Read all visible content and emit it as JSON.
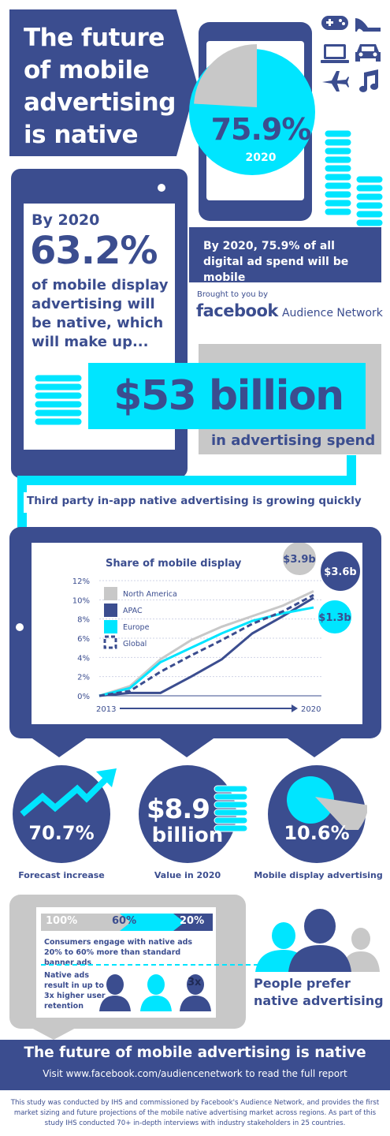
{
  "colors": {
    "navy": "#3b4d8f",
    "cyan": "#00e5ff",
    "grey": "#c8c8c8",
    "dark": "#1f2a55"
  },
  "hero": {
    "title": [
      "The future",
      "of mobile",
      "advertising",
      "is native"
    ],
    "percent": "75.9%",
    "percent_year": "2020",
    "caption": "By 2020, 75.9% of all digital ad spend will be mobile",
    "mobile_share": 75.9
  },
  "brand": {
    "brought": "Brought to you by",
    "logo": "facebook",
    "product": "Audience Network"
  },
  "native": {
    "by": "By 2020",
    "pct": "63.2%",
    "lines": [
      "of mobile display",
      "advertising will",
      "be native, which",
      "will make up..."
    ],
    "amount": "$53 billion",
    "amount_sub": "in advertising spend"
  },
  "growth_headline": "Third party in-app native advertising is growing quickly",
  "chart_data": {
    "type": "line",
    "title": "Share of mobile display",
    "x": [
      2013,
      2014,
      2015,
      2016,
      2017,
      2018,
      2019,
      2020
    ],
    "x_ticks": [
      "2013",
      "2020"
    ],
    "y_ticks": [
      "0%",
      "2%",
      "4%",
      "6%",
      "8%",
      "10%",
      "12%"
    ],
    "ylim": [
      0,
      12
    ],
    "series": [
      {
        "name": "North America",
        "style": "grey",
        "values": [
          0,
          1.0,
          3.8,
          5.8,
          7.2,
          8.3,
          9.4,
          10.9
        ],
        "bubble": "$3.9b"
      },
      {
        "name": "APAC",
        "style": "navy",
        "values": [
          0,
          0.3,
          0.3,
          2.0,
          3.8,
          6.5,
          8.3,
          10.2
        ],
        "bubble": "$3.6b"
      },
      {
        "name": "Europe",
        "style": "cyan",
        "values": [
          0,
          0.8,
          3.5,
          5.0,
          6.5,
          7.8,
          8.6,
          9.2
        ],
        "bubble": "$1.3b"
      },
      {
        "name": "Global",
        "style": "dashed",
        "values": [
          0,
          0.5,
          2.5,
          4.2,
          5.8,
          7.5,
          8.8,
          10.5
        ]
      }
    ],
    "legend_position": "top-left"
  },
  "stats": [
    {
      "value": "70.7%",
      "label": "Forecast increase"
    },
    {
      "value": "$8.9",
      "value2": "billion",
      "label": "Value in 2020"
    },
    {
      "value": "10.6%",
      "label": "Mobile display advertising",
      "share": 10.6
    }
  ],
  "engagement": {
    "bar_labels": [
      "100%",
      "60%",
      "20%"
    ],
    "text": "Consumers engage with native ads 20% to 60% more than standard banner ads",
    "retention": [
      "Native ads",
      "result in up to",
      "3x higher user",
      "retention"
    ],
    "multiplier": "3x",
    "prefer": [
      "People prefer",
      "native advertising"
    ]
  },
  "footer": {
    "headline": "The future of mobile advertising is native",
    "visit": "Visit www.facebook.com/audiencenetwork to read the full report",
    "note": "This study was conducted by IHS and commissioned by Facebook's Audience Network, and provides the first market sizing and future projections of the mobile native advertising market across regions. As part of this study IHS conducted 70+ in-depth interviews with industry stakeholders in 25 countries."
  }
}
